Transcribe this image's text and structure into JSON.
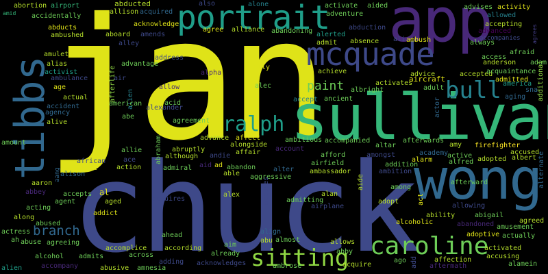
{
  "words": {
    "jan": "jan",
    "chuck": "chuck",
    "sullivan": "sullivan",
    "wong": "wong",
    "app": "app",
    "tibbs": "tibbs",
    "portrait": "portrait",
    "mcquade": "mcquade",
    "caroline": "caroline",
    "sitting": "sitting",
    "bull": "bull",
    "ralph": "ralph",
    "branch": "branch",
    "paint": "paint",
    "abortion": "abortion",
    "airport": "airport",
    "abducted": "abducted",
    "allison": "allison",
    "acquired": "acquired",
    "also": "also",
    "alone": "alone",
    "activate": "activate",
    "aided": "aided",
    "advises": "advises",
    "activity": "activity",
    "amid": "amid",
    "accidentally": "accidentally",
    "acknowledge": "acknowledge",
    "adventure": "adventure",
    "allowed": "allowed",
    "abducts": "abducts",
    "agree": "agree",
    "alliance": "alliance",
    "abandoning": "abandoning",
    "abduction": "abduction",
    "accepting": "accepting",
    "advanced": "advanced",
    "agrees": "agrees",
    "ambushed": "ambushed",
    "aboard": "aboard",
    "amends": "amends",
    "alerted": "alerted",
    "accompanies": "accompanies",
    "alley": "alley",
    "admit": "admit",
    "absence": "absence",
    "ali": "ali",
    "ambush": "ambush",
    "always": "always",
    "amulet": "amulet",
    "afraid": "afraid",
    "alias": "alias",
    "advantage": "advantage",
    "address": "address",
    "access": "access",
    "anderson": "anderson",
    "adam": "adam",
    "activist": "activist",
    "ambulance": "ambulance",
    "air": "air",
    "afterlife": "afterlife",
    "alpha": "alpha",
    "ally": "ally",
    "achieve": "achieve",
    "advice": "advice",
    "accepted": "accepted",
    "acquaintance": "acquaintance",
    "admitted": "admitted",
    "america": "america",
    "snap": "sna",
    "additional": "additional",
    "age": "age",
    "allow": "allow",
    "alec": "alec",
    "albright": "albright",
    "activates": "activates",
    "aircraft": "aircraft",
    "adult": "adult",
    "aging": "aging",
    "actual": "actual",
    "accept": "accept",
    "ancient": "ancient",
    "accident": "accident",
    "alien": "alien",
    "acid": "acid",
    "agency": "agency",
    "american": "american",
    "alexander": "alexander",
    "alive": "alive",
    "abe": "abe",
    "agreement": "agreement",
    "actor": "actor",
    "advance": "advance",
    "affect": "affect",
    "ambitious": "ambitious",
    "accompanied": "accompanied",
    "altar": "altar",
    "afterwards": "afterwards",
    "amy": "amy",
    "firefighter": "firefighter",
    "amount": "amount",
    "allie": "allie",
    "abraham": "abraham",
    "abruptly": "abruptly",
    "alongside": "alongside",
    "account": "account",
    "amongst": "amongst",
    "academy": "academy",
    "accused": "accused",
    "ace": "ace",
    "although": "although",
    "andie": "andie",
    "affair": "affair",
    "afford": "afford",
    "active": "active",
    "albert": "albert",
    "african": "african",
    "alarm": "alarm",
    "alfred": "alfred",
    "adopted": "adopted",
    "alternate": "alternate",
    "aang": "aang",
    "alert": "alert",
    "action": "action",
    "admiral": "admiral",
    "aid": "aid",
    "ad": "ad",
    "abandon": "abandon",
    "airfield": "airfield",
    "addition": "addition",
    "alison": "alison",
    "able": "able",
    "aggressive": "aggressive",
    "alter": "alter",
    "ambassador": "ambassador",
    "ambition": "ambition",
    "aaron": "aaron",
    "among": "among",
    "al": "al",
    "afterward": "afterward",
    "abbey": "abbey",
    "accepts": "accepts",
    "alex": "alex",
    "accuses": "accuses",
    "aide": "aide",
    "alan": "alan",
    "acting": "acting",
    "agent": "agent",
    "aged": "aged",
    "acquires": "acquires",
    "admitting": "admitting",
    "adopt": "adopt",
    "act": "act",
    "allowing": "allowing",
    "along": "along",
    "addict": "addict",
    "airplane": "airplane",
    "ability": "ability",
    "abigail": "abigail",
    "abused": "abused",
    "alcoholic": "alcoholic",
    "abandoned": "abandoned",
    "amusement": "amusement",
    "agreed": "agreed",
    "actress": "actress",
    "align": "align",
    "ahead": "ahead",
    "adoptive": "adoptive",
    "actually": "actually",
    "abuse": "abuse",
    "agreeing": "agreeing",
    "ah": "ah",
    "abu": "abu",
    "almost": "almost",
    "allows": "allows",
    "aim": "aim",
    "accomplice": "accomplice",
    "according": "according",
    "abby": "abby",
    "activated": "activated",
    "alcohol": "alcohol",
    "admits": "admits",
    "across": "across",
    "already": "already",
    "accusing": "accusing",
    "adding": "adding",
    "affection": "affection",
    "ago": "ago",
    "add": "add",
    "alamein": "alamein",
    "accompany": "accompany",
    "acknowledges": "acknowledges",
    "ambrose": "ambrose",
    "acquire": "acquire",
    "aftermath": "aftermath",
    "abusive": "abusive",
    "amnesia": "amnesia"
  }
}
